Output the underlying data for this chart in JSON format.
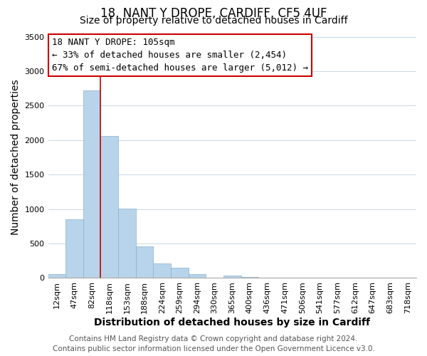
{
  "title": "18, NANT Y DROPE, CARDIFF, CF5 4UF",
  "subtitle": "Size of property relative to detached houses in Cardiff",
  "xlabel": "Distribution of detached houses by size in Cardiff",
  "ylabel": "Number of detached properties",
  "bar_labels": [
    "12sqm",
    "47sqm",
    "82sqm",
    "118sqm",
    "153sqm",
    "188sqm",
    "224sqm",
    "259sqm",
    "294sqm",
    "330sqm",
    "365sqm",
    "400sqm",
    "436sqm",
    "471sqm",
    "506sqm",
    "541sqm",
    "577sqm",
    "612sqm",
    "647sqm",
    "683sqm",
    "718sqm"
  ],
  "bar_values": [
    55,
    855,
    2720,
    2060,
    1010,
    455,
    210,
    145,
    55,
    0,
    40,
    20,
    0,
    0,
    0,
    0,
    0,
    0,
    0,
    0,
    0
  ],
  "bar_color": "#b8d4ea",
  "bar_edge_color": "#8ab0cc",
  "vline_color": "#cc0000",
  "vline_x": 2.5,
  "annotation_title": "18 NANT Y DROPE: 105sqm",
  "annotation_line1": "← 33% of detached houses are smaller (2,454)",
  "annotation_line2": "67% of semi-detached houses are larger (5,012) →",
  "annotation_box_color": "#ffffff",
  "annotation_box_edge": "#cc0000",
  "ylim": [
    0,
    3500
  ],
  "yticks": [
    0,
    500,
    1000,
    1500,
    2000,
    2500,
    3000,
    3500
  ],
  "footer1": "Contains HM Land Registry data © Crown copyright and database right 2024.",
  "footer2": "Contains public sector information licensed under the Open Government Licence v3.0.",
  "bg_color": "#ffffff",
  "grid_color": "#c8d8e8",
  "title_fontsize": 12,
  "subtitle_fontsize": 10,
  "axis_label_fontsize": 10,
  "tick_fontsize": 8,
  "annotation_fontsize": 9,
  "footer_fontsize": 7.5
}
